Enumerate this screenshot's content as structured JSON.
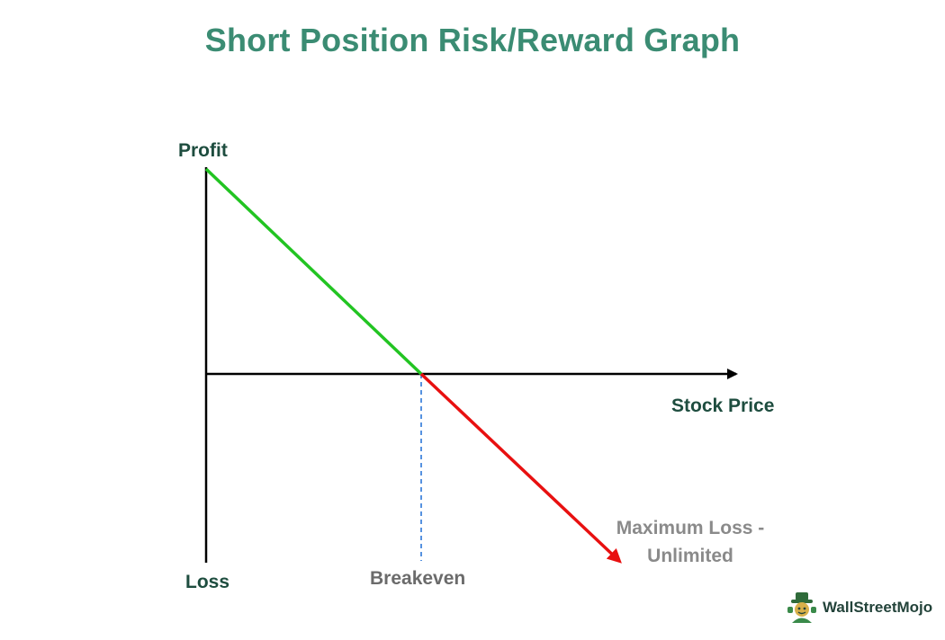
{
  "title": "Short Position Risk/Reward Graph",
  "labels": {
    "profit": "Profit",
    "loss": "Loss",
    "stock_price": "Stock Price",
    "breakeven": "Breakeven",
    "max_loss": "Maximum Loss - Unlimited"
  },
  "colors": {
    "title": "#3b8c73",
    "profit_line": "#22c422",
    "loss_line": "#e81010",
    "axis": "#000000",
    "breakeven_dash": "#1f6fd6",
    "axis_labels": "#1e4d3f",
    "breakeven_label": "#6b6b6b",
    "max_loss_label": "#8a8a8a"
  },
  "brand": {
    "name": "WallStreetMojo",
    "icon": "mojo-mascot-icon"
  }
}
